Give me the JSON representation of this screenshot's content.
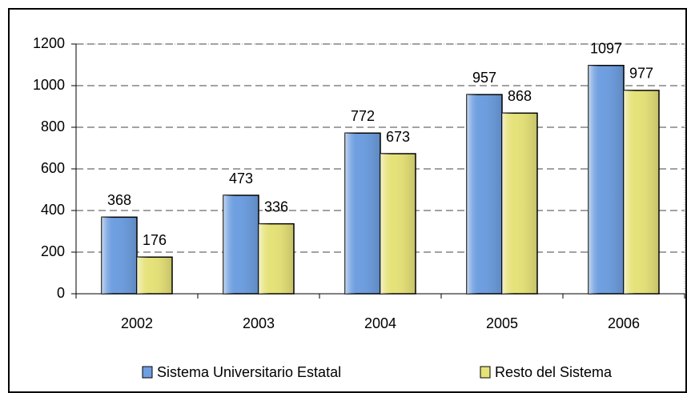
{
  "chart_data": {
    "type": "bar",
    "categories": [
      "2002",
      "2003",
      "2004",
      "2005",
      "2006"
    ],
    "series": [
      {
        "name": "Sistema Universitario Estatal",
        "color": "#6f9fe0",
        "values": [
          368,
          473,
          772,
          957,
          1097
        ]
      },
      {
        "name": "Resto del Sistema",
        "color": "#e6e27a",
        "values": [
          176,
          336,
          673,
          868,
          977
        ]
      }
    ],
    "ylim": [
      0,
      1200
    ],
    "yticks": [
      0,
      200,
      400,
      600,
      800,
      1000,
      1200
    ],
    "grid": true,
    "legend": "bottom"
  }
}
